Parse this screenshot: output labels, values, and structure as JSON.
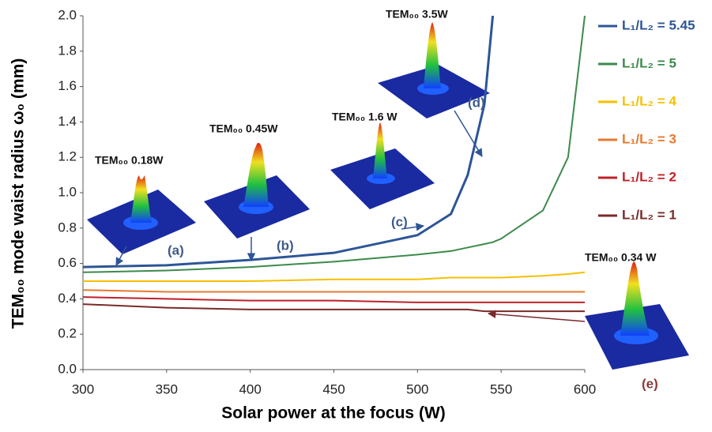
{
  "chart_data": {
    "type": "line",
    "xlabel": "Solar power at the focus (W)",
    "ylabel": "TEM₀₀ mode waist radius ω₀ (mm)",
    "x": [
      300,
      350,
      400,
      450,
      500,
      520,
      530,
      540,
      545,
      550,
      575,
      590,
      600
    ],
    "series": [
      {
        "name": "L₁/L₂ = 5.45",
        "color": "#2d5597",
        "values": [
          0.58,
          0.59,
          0.62,
          0.66,
          0.76,
          0.88,
          1.1,
          1.5,
          2.0,
          null,
          null,
          null,
          null
        ]
      },
      {
        "name": "L₁/L₂ = 5",
        "color": "#3c8a4c",
        "values": [
          0.55,
          0.56,
          0.58,
          0.61,
          0.65,
          0.67,
          0.69,
          0.71,
          0.72,
          0.74,
          0.9,
          1.2,
          2.0
        ]
      },
      {
        "name": "L₁/L₂ = 4",
        "color": "#f5c000",
        "values": [
          0.5,
          0.5,
          0.5,
          0.51,
          0.51,
          0.52,
          0.52,
          0.52,
          0.52,
          0.52,
          0.53,
          0.54,
          0.55
        ]
      },
      {
        "name": "L₁/L₂ = 3",
        "color": "#e8782e",
        "values": [
          0.45,
          0.44,
          0.44,
          0.44,
          0.44,
          0.44,
          0.44,
          0.44,
          0.44,
          0.44,
          0.44,
          0.44,
          0.44
        ]
      },
      {
        "name": "L₁/L₂ = 2",
        "color": "#c0202a",
        "values": [
          0.41,
          0.4,
          0.39,
          0.39,
          0.38,
          0.38,
          0.38,
          0.38,
          0.38,
          0.38,
          0.38,
          0.38,
          0.38
        ]
      },
      {
        "name": "L₁/L₂ = 1",
        "color": "#7a2a2a",
        "values": [
          0.37,
          0.35,
          0.34,
          0.34,
          0.34,
          0.34,
          0.34,
          0.33,
          0.33,
          0.33,
          0.33,
          0.33,
          0.33
        ]
      }
    ],
    "xlim": [
      300,
      600
    ],
    "xticks": [
      300,
      350,
      400,
      450,
      500,
      550,
      600
    ],
    "ylim": [
      0,
      2
    ],
    "yticks": [
      {
        "value": 0,
        "label": "0.0"
      },
      0.2,
      0.4,
      0.6,
      0.8,
      {
        "value": 1,
        "label": "1.0"
      },
      1.2,
      1.4,
      1.6,
      1.8,
      {
        "value": 2,
        "label": "2.0"
      }
    ],
    "legend": "right",
    "annotations": [
      "TEM₀₀ 0.18W",
      "(a)",
      "TEM₀₀ 0.45W",
      "(b)",
      "TEM₀₀ 1.6 W",
      "(c)",
      "TEM₀₀ 3.5W",
      "(d)",
      "TEM₀₀ 0.34 W",
      "(e)"
    ]
  }
}
